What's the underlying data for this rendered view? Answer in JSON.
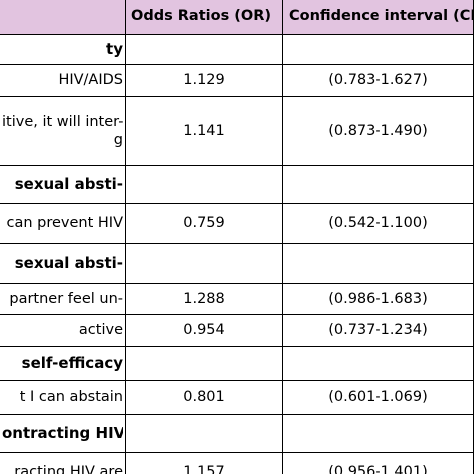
{
  "header": {
    "col_or": "Odds Ratios (OR)",
    "col_ci": "Confidence interval (CI)"
  },
  "rows": [
    {
      "kind": "section",
      "lines": [
        "ty"
      ],
      "or": "",
      "ci": ""
    },
    {
      "kind": "data",
      "lines": [
        "HIV/AIDS"
      ],
      "or": "1.129",
      "ci": "(0.783-1.627)"
    },
    {
      "kind": "data",
      "lines": [
        "itive, it will inter-",
        "g"
      ],
      "or": "1.141",
      "ci": "(0.873-1.490)"
    },
    {
      "kind": "section",
      "lines": [
        "sexual  absti-"
      ],
      "or": "",
      "ci": ""
    },
    {
      "kind": "data",
      "lines": [
        "can  prevent  HIV"
      ],
      "or": "0.759",
      "ci": "(0.542-1.100)"
    },
    {
      "kind": "section",
      "lines": [
        "sexual  absti-"
      ],
      "or": "",
      "ci": ""
    },
    {
      "kind": "data",
      "lines": [
        "partner  feel  un-"
      ],
      "or": "1.288",
      "ci": "(0.986-1.683)"
    },
    {
      "kind": "data",
      "lines": [
        "active"
      ],
      "or": "0.954",
      "ci": "(0.737-1.234)"
    },
    {
      "kind": "section",
      "lines": [
        "self-efficacy"
      ],
      "or": "",
      "ci": ""
    },
    {
      "kind": "data",
      "lines": [
        "t  I  can  abstain"
      ],
      "or": "0.801",
      "ci": "(0.601-1.069)"
    },
    {
      "kind": "section",
      "lines": [
        "ontracting HIV"
      ],
      "or": "",
      "ci": ""
    },
    {
      "kind": "data",
      "lines": [
        "racting  HIV  are"
      ],
      "or": "1.157",
      "ci": "(0.956-1.401)"
    }
  ]
}
